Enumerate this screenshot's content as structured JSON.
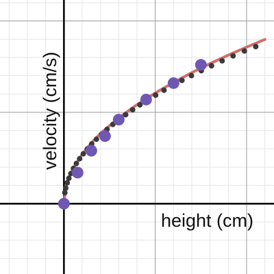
{
  "chart_data": {
    "type": "scatter",
    "title": "",
    "xlabel": "height (cm)",
    "ylabel": "velocity (cm/s)",
    "xlim": [
      -3.5,
      11.5
    ],
    "ylim": [
      -3.85,
      11.15
    ],
    "grid": true,
    "colors": {
      "background": "#ffffff",
      "minor_grid": "#e6e6e6",
      "major_grid": "#999999",
      "axis": "#000000",
      "dotted_series": "#3a3a3a",
      "measured_points": "#6f57b4",
      "fit_curve": "#d06e6e"
    },
    "series": [
      {
        "style": "dotted",
        "x": [
          0,
          0.05,
          0.1,
          0.18,
          0.27,
          0.38,
          0.52,
          0.68,
          0.86,
          1.06,
          1.28,
          1.52,
          1.78,
          2.06,
          2.36,
          2.68,
          3.02,
          3.38,
          3.76,
          4.16,
          4.58,
          5.02,
          5.48,
          5.96,
          6.46,
          6.98,
          7.52,
          8.08,
          8.66,
          9.26,
          9.88,
          10.5
        ],
        "y": [
          0,
          0.6,
          0.85,
          1.14,
          1.39,
          1.65,
          1.93,
          2.2,
          2.46,
          2.73,
          3.0,
          3.27,
          3.53,
          3.8,
          4.07,
          4.34,
          4.61,
          4.87,
          5.14,
          5.41,
          5.67,
          5.94,
          6.21,
          6.48,
          6.75,
          7.01,
          7.28,
          7.55,
          7.82,
          8.09,
          8.36,
          8.6
        ]
      },
      {
        "style": "points",
        "x": [
          0,
          0.75,
          1.5,
          2.25,
          3.0,
          4.5,
          6.0,
          7.5
        ],
        "y": [
          0,
          1.7,
          2.9,
          3.7,
          4.6,
          5.7,
          6.6,
          7.6
        ]
      },
      {
        "style": "curve",
        "x": [
          0,
          0.1,
          0.25,
          0.5,
          1,
          1.5,
          2,
          3,
          4,
          5,
          6,
          7,
          8,
          9,
          10,
          11
        ],
        "y": [
          0,
          0.86,
          1.36,
          1.92,
          2.71,
          3.32,
          3.84,
          4.7,
          5.42,
          6.06,
          6.64,
          7.17,
          7.67,
          8.13,
          8.57,
          8.99
        ]
      }
    ]
  }
}
